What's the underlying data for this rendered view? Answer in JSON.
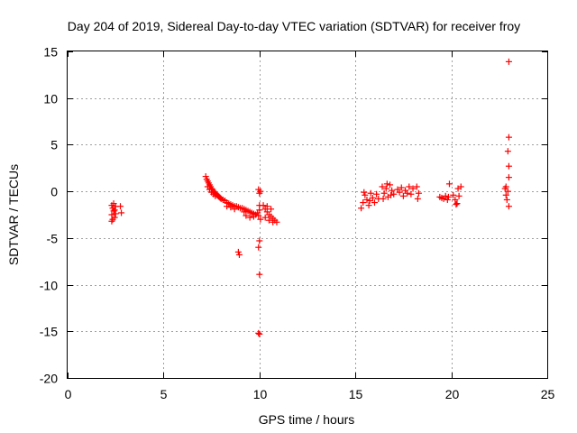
{
  "chart_data": {
    "type": "scatter",
    "title": "Day 204 of 2019, Sidereal Day-to-day VTEC variation (SDTVAR) for receiver froy",
    "xlabel": "GPS time / hours",
    "ylabel": "SDTVAR / TECUs",
    "xlim": [
      0,
      25
    ],
    "ylim": [
      -20,
      15
    ],
    "xticks": [
      0,
      5,
      10,
      15,
      20,
      25
    ],
    "yticks": [
      -20,
      -15,
      -10,
      -5,
      0,
      5,
      10,
      15
    ],
    "xtick_labels": [
      "0",
      "5",
      "10",
      "15",
      "20",
      "25"
    ],
    "ytick_labels": [
      "-20",
      "-15",
      "-10",
      "-5",
      "0",
      "5",
      "10",
      "15"
    ],
    "grid": true,
    "marker": "plus",
    "color": "#ff0000",
    "series": [
      {
        "name": "SDTVAR",
        "points": [
          [
            2.3,
            -1.5
          ],
          [
            2.35,
            -1.8
          ],
          [
            2.4,
            -2.1
          ],
          [
            2.3,
            -2.5
          ],
          [
            2.35,
            -3.0
          ],
          [
            2.4,
            -1.3
          ],
          [
            2.45,
            -2.0
          ],
          [
            2.5,
            -2.4
          ],
          [
            2.3,
            -3.2
          ],
          [
            2.5,
            -1.6
          ],
          [
            2.75,
            -1.6
          ],
          [
            2.8,
            -2.3
          ],
          [
            2.45,
            -2.8
          ],
          [
            7.2,
            1.6
          ],
          [
            7.25,
            1.3
          ],
          [
            7.3,
            1.1
          ],
          [
            7.35,
            0.9
          ],
          [
            7.4,
            0.7
          ],
          [
            7.45,
            0.5
          ],
          [
            7.5,
            0.3
          ],
          [
            7.55,
            0.2
          ],
          [
            7.6,
            0.0
          ],
          [
            7.65,
            -0.1
          ],
          [
            7.7,
            -0.2
          ],
          [
            7.75,
            -0.3
          ],
          [
            7.8,
            -0.4
          ],
          [
            7.85,
            -0.5
          ],
          [
            7.9,
            -0.6
          ],
          [
            7.95,
            -0.7
          ],
          [
            8.0,
            -0.8
          ],
          [
            7.3,
            0.5
          ],
          [
            7.4,
            0.2
          ],
          [
            7.5,
            -0.1
          ],
          [
            7.6,
            -0.3
          ],
          [
            7.7,
            -0.5
          ],
          [
            8.1,
            -0.9
          ],
          [
            8.2,
            -1.0
          ],
          [
            8.3,
            -1.2
          ],
          [
            8.4,
            -1.3
          ],
          [
            8.5,
            -1.4
          ],
          [
            8.6,
            -1.5
          ],
          [
            8.7,
            -1.6
          ],
          [
            8.8,
            -1.6
          ],
          [
            8.9,
            -1.7
          ],
          [
            9.0,
            -1.8
          ],
          [
            8.3,
            -1.6
          ],
          [
            8.5,
            -1.7
          ],
          [
            8.7,
            -1.9
          ],
          [
            9.1,
            -1.8
          ],
          [
            9.2,
            -1.9
          ],
          [
            9.3,
            -2.0
          ],
          [
            9.4,
            -2.1
          ],
          [
            9.5,
            -2.2
          ],
          [
            9.6,
            -2.3
          ],
          [
            9.7,
            -2.4
          ],
          [
            9.8,
            -2.5
          ],
          [
            9.3,
            -2.6
          ],
          [
            9.5,
            -2.8
          ],
          [
            9.7,
            -2.7
          ],
          [
            9.2,
            -2.2
          ],
          [
            9.9,
            -2.3
          ],
          [
            8.9,
            -6.5
          ],
          [
            8.95,
            -6.8
          ],
          [
            9.95,
            0.2
          ],
          [
            10.0,
            -0.2
          ],
          [
            10.05,
            0.0
          ],
          [
            10.0,
            -1.5
          ],
          [
            10.0,
            -2.0
          ],
          [
            9.95,
            -2.6
          ],
          [
            10.05,
            -3.0
          ],
          [
            10.0,
            -5.3
          ],
          [
            9.95,
            -6.0
          ],
          [
            10.0,
            -8.9
          ],
          [
            9.95,
            -15.2
          ],
          [
            10.0,
            -15.3
          ],
          [
            10.2,
            -1.5
          ],
          [
            10.3,
            -1.9
          ],
          [
            10.4,
            -2.2
          ],
          [
            10.5,
            -2.5
          ],
          [
            10.6,
            -2.7
          ],
          [
            10.7,
            -2.9
          ],
          [
            10.8,
            -3.1
          ],
          [
            10.9,
            -3.3
          ],
          [
            10.3,
            -2.8
          ],
          [
            10.5,
            -3.1
          ],
          [
            10.7,
            -3.3
          ],
          [
            10.4,
            -1.6
          ],
          [
            10.6,
            -1.9
          ],
          [
            15.3,
            -1.8
          ],
          [
            15.4,
            -1.2
          ],
          [
            15.5,
            -0.4
          ],
          [
            15.6,
            -0.9
          ],
          [
            15.7,
            -1.5
          ],
          [
            15.8,
            -0.2
          ],
          [
            15.9,
            -0.7
          ],
          [
            16.0,
            -1.2
          ],
          [
            16.1,
            -0.3
          ],
          [
            16.2,
            -0.8
          ],
          [
            15.45,
            -0.1
          ],
          [
            15.75,
            -1.0
          ],
          [
            16.4,
            0.5
          ],
          [
            16.5,
            -0.2
          ],
          [
            16.6,
            0.3
          ],
          [
            16.7,
            -0.6
          ],
          [
            16.8,
            0.7
          ],
          [
            16.9,
            0.1
          ],
          [
            17.0,
            -0.3
          ],
          [
            16.45,
            -0.8
          ],
          [
            16.65,
            0.8
          ],
          [
            16.85,
            -0.4
          ],
          [
            17.2,
            0.2
          ],
          [
            17.3,
            -0.1
          ],
          [
            17.4,
            0.4
          ],
          [
            17.5,
            -0.5
          ],
          [
            17.6,
            0.1
          ],
          [
            17.7,
            -0.2
          ],
          [
            17.8,
            0.5
          ],
          [
            17.9,
            -0.3
          ],
          [
            18.0,
            0.3
          ],
          [
            18.2,
            0.5
          ],
          [
            18.3,
            -0.2
          ],
          [
            18.25,
            -0.8
          ],
          [
            19.4,
            -0.6
          ],
          [
            19.5,
            -0.7
          ],
          [
            19.6,
            -0.8
          ],
          [
            19.7,
            -0.5
          ],
          [
            19.8,
            -0.9
          ],
          [
            19.9,
            0.8
          ],
          [
            19.85,
            -0.6
          ],
          [
            20.1,
            -0.4
          ],
          [
            20.2,
            -0.9
          ],
          [
            20.3,
            -1.3
          ],
          [
            20.4,
            -0.5
          ],
          [
            20.5,
            0.5
          ],
          [
            20.35,
            0.3
          ],
          [
            20.25,
            -1.4
          ],
          [
            22.8,
            0.3
          ],
          [
            22.85,
            -0.4
          ],
          [
            22.9,
            -0.9
          ],
          [
            22.95,
            0.0
          ],
          [
            23.0,
            -1.6
          ],
          [
            22.85,
            0.5
          ],
          [
            23.0,
            1.5
          ],
          [
            23.0,
            2.7
          ],
          [
            22.95,
            4.3
          ],
          [
            23.0,
            5.8
          ],
          [
            23.0,
            13.9
          ]
        ]
      }
    ]
  }
}
